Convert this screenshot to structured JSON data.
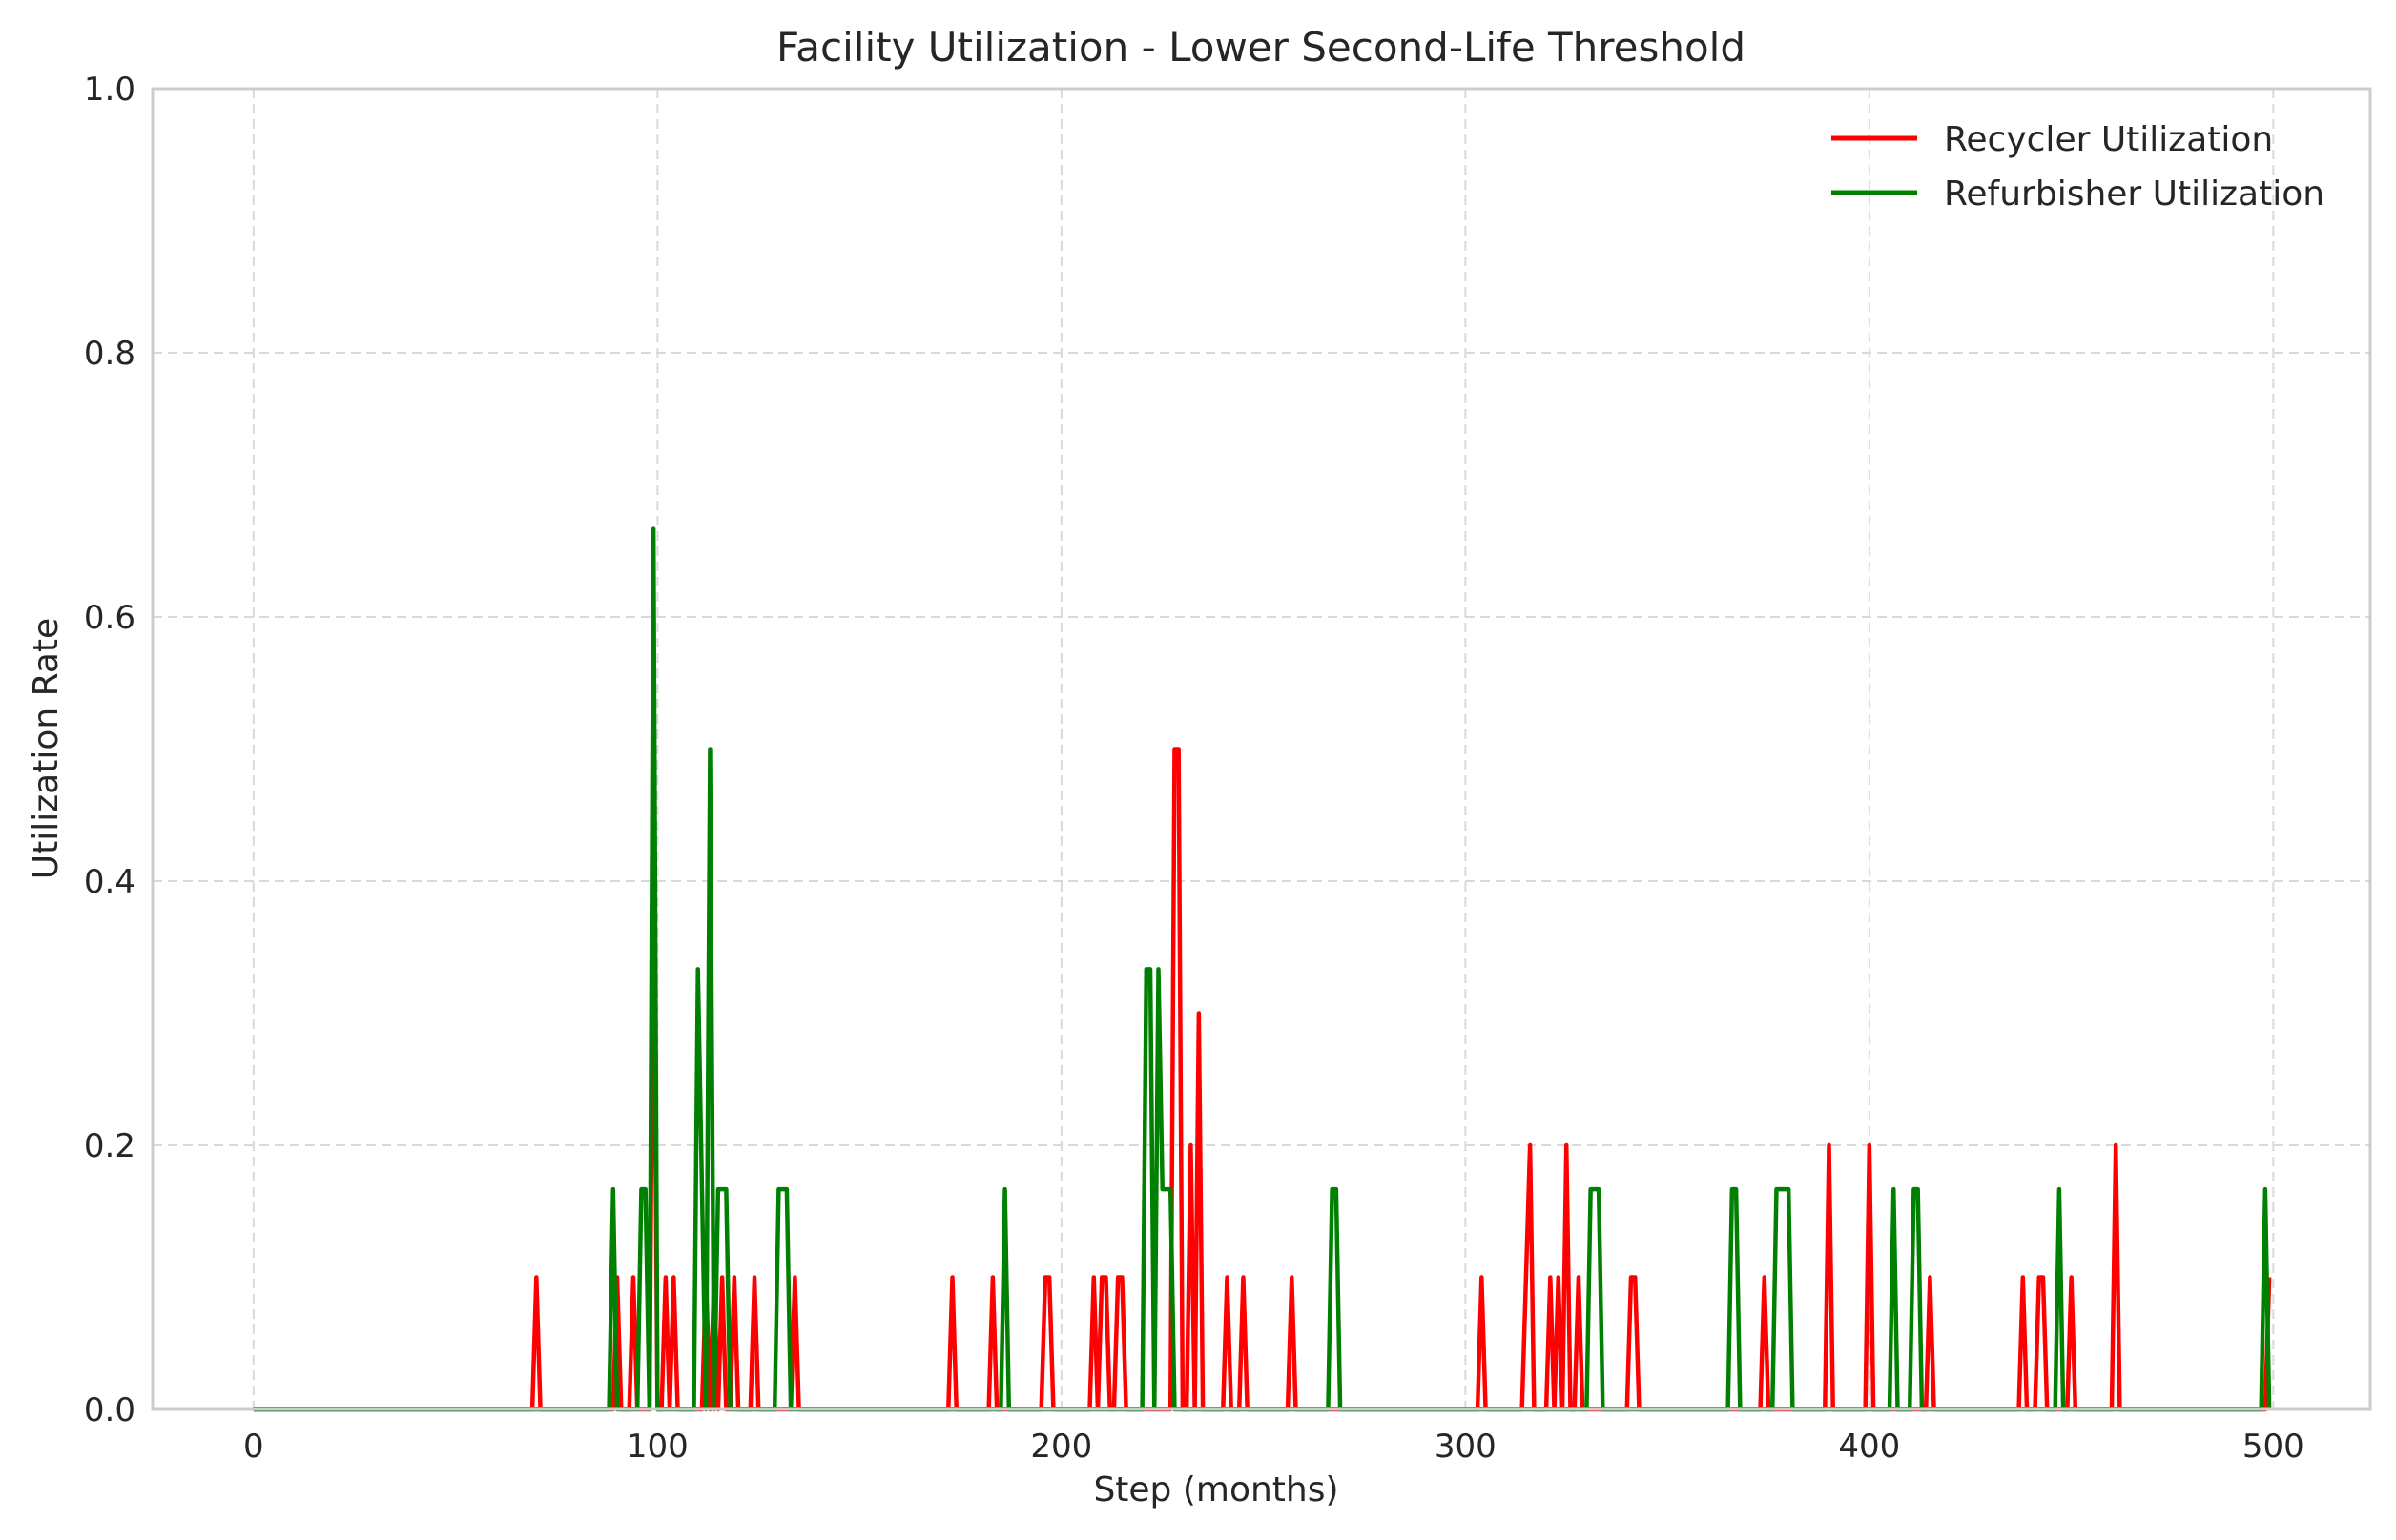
{
  "chart_data": {
    "type": "line",
    "title": "Facility Utilization - Lower Second-Life Threshold",
    "xlabel": "Step (months)",
    "ylabel": "Utilization Rate",
    "xlim": [
      -25,
      524
    ],
    "ylim": [
      0,
      1.0
    ],
    "xticks": [
      0,
      100,
      200,
      300,
      400,
      500
    ],
    "yticks": [
      0.0,
      0.2,
      0.4,
      0.6,
      0.8,
      1.0
    ],
    "xtick_labels": [
      "0",
      "100",
      "200",
      "300",
      "400",
      "500"
    ],
    "ytick_labels": [
      "0.0",
      "0.2",
      "0.4",
      "0.6",
      "0.8",
      "1.0"
    ],
    "grid": true,
    "legend_position": "top-right",
    "x_range": [
      0,
      499
    ],
    "series": [
      {
        "name": "Recycler Utilization",
        "color": "#ff0000",
        "default": 0,
        "points": [
          [
            70,
            0.1
          ],
          [
            90,
            0.1
          ],
          [
            94,
            0.1
          ],
          [
            99,
            0.4
          ],
          [
            102,
            0.1
          ],
          [
            104,
            0.1
          ],
          [
            112,
            0.1
          ],
          [
            114,
            0.1
          ],
          [
            116,
            0.1
          ],
          [
            119,
            0.1
          ],
          [
            124,
            0.1
          ],
          [
            134,
            0.1
          ],
          [
            173,
            0.1
          ],
          [
            183,
            0.1
          ],
          [
            196,
            0.1
          ],
          [
            197,
            0.1
          ],
          [
            208,
            0.1
          ],
          [
            210,
            0.1
          ],
          [
            211,
            0.1
          ],
          [
            214,
            0.1
          ],
          [
            215,
            0.1
          ],
          [
            228,
            0.5
          ],
          [
            229,
            0.5
          ],
          [
            232,
            0.2
          ],
          [
            234,
            0.3
          ],
          [
            241,
            0.1
          ],
          [
            245,
            0.1
          ],
          [
            257,
            0.1
          ],
          [
            304,
            0.1
          ],
          [
            315,
            0.1
          ],
          [
            316,
            0.2
          ],
          [
            321,
            0.1
          ],
          [
            323,
            0.1
          ],
          [
            325,
            0.2
          ],
          [
            328,
            0.1
          ],
          [
            341,
            0.1
          ],
          [
            342,
            0.1
          ],
          [
            374,
            0.1
          ],
          [
            390,
            0.2
          ],
          [
            400,
            0.2
          ],
          [
            415,
            0.1
          ],
          [
            438,
            0.1
          ],
          [
            442,
            0.1
          ],
          [
            443,
            0.1
          ],
          [
            450,
            0.1
          ],
          [
            461,
            0.2
          ],
          [
            499,
            0.1
          ]
        ]
      },
      {
        "name": "Refurbisher Utilization",
        "color": "#008000",
        "default": 0,
        "points": [
          [
            89,
            0.1667
          ],
          [
            96,
            0.1667
          ],
          [
            97,
            0.1667
          ],
          [
            99,
            0.6667
          ],
          [
            110,
            0.3333
          ],
          [
            111,
            0.1667
          ],
          [
            113,
            0.5
          ],
          [
            115,
            0.1667
          ],
          [
            116,
            0.1667
          ],
          [
            117,
            0.1667
          ],
          [
            130,
            0.1667
          ],
          [
            131,
            0.1667
          ],
          [
            132,
            0.1667
          ],
          [
            186,
            0.1667
          ],
          [
            221,
            0.3333
          ],
          [
            222,
            0.3333
          ],
          [
            224,
            0.3333
          ],
          [
            225,
            0.1667
          ],
          [
            226,
            0.1667
          ],
          [
            227,
            0.1667
          ],
          [
            267,
            0.1667
          ],
          [
            268,
            0.1667
          ],
          [
            331,
            0.1667
          ],
          [
            332,
            0.1667
          ],
          [
            333,
            0.1667
          ],
          [
            366,
            0.1667
          ],
          [
            367,
            0.1667
          ],
          [
            377,
            0.1667
          ],
          [
            378,
            0.1667
          ],
          [
            379,
            0.1667
          ],
          [
            380,
            0.1667
          ],
          [
            406,
            0.1667
          ],
          [
            411,
            0.1667
          ],
          [
            412,
            0.1667
          ],
          [
            447,
            0.1667
          ],
          [
            498,
            0.1667
          ]
        ]
      }
    ]
  }
}
